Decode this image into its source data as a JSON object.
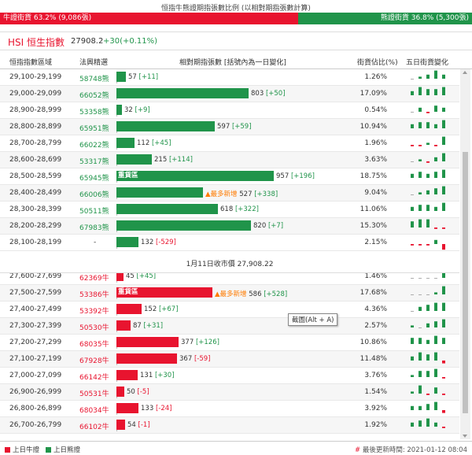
{
  "top": {
    "title": "恒指牛熊證期指張數比例 (以相對期指張數計算)",
    "bull_label": "牛證街貨 63.2% (9,086張)",
    "bear_label": "熊證街貨 36.8% (5,300張)",
    "bull_share": 0.632,
    "colors": {
      "bull": "#e8142f",
      "bear": "#20944a"
    }
  },
  "index": {
    "name": "HSI 恒生指數",
    "value": "27908.2",
    "change": "+30(+0.11%)"
  },
  "headers": {
    "range": "恒指指數區域",
    "code": "法興精選",
    "qty": "相對期指張數 [括號內為一日變化]",
    "pct": "街貨佔比(%)",
    "spark": "五日街貨變化"
  },
  "bear_rows": [
    {
      "range": "29,100-29,199",
      "code": "58748熊",
      "qty": 57,
      "delta": "[+11]",
      "pct": "1.26%",
      "heavy": "",
      "mark": "",
      "spark": [
        0,
        1,
        2,
        4,
        2
      ]
    },
    {
      "range": "29,000-29,099",
      "code": "66052熊",
      "qty": 803,
      "delta": "[+50]",
      "pct": "17.09%",
      "heavy": "",
      "mark": "",
      "spark": [
        2,
        4,
        3,
        3,
        4
      ]
    },
    {
      "range": "28,900-28,999",
      "code": "53358熊",
      "qty": 32,
      "delta": "[+9]",
      "pct": "0.54%",
      "heavy": "",
      "mark": "",
      "spark": [
        0,
        2,
        -1,
        3,
        2
      ]
    },
    {
      "range": "28,800-28,899",
      "code": "65951熊",
      "qty": 597,
      "delta": "[+59]",
      "pct": "10.94%",
      "heavy": "",
      "mark": "",
      "spark": [
        2,
        3,
        3,
        2,
        4
      ]
    },
    {
      "range": "28,700-28,799",
      "code": "66022熊",
      "qty": 112,
      "delta": "[+45]",
      "pct": "1.96%",
      "heavy": "",
      "mark": "",
      "spark": [
        -1,
        -1,
        1,
        -1,
        4
      ]
    },
    {
      "range": "28,600-28,699",
      "code": "53317熊",
      "qty": 215,
      "delta": "[+114]",
      "pct": "3.63%",
      "heavy": "",
      "mark": "",
      "spark": [
        0,
        1,
        -1,
        2,
        4
      ]
    },
    {
      "range": "28,500-28,599",
      "code": "65945熊",
      "qty": 957,
      "delta": "[+196]",
      "pct": "18.75%",
      "heavy": "重貨區",
      "mark": "",
      "spark": [
        2,
        3,
        2,
        3,
        4
      ]
    },
    {
      "range": "28,400-28,499",
      "code": "66006熊",
      "qty": 527,
      "delta": "[+338]",
      "pct": "9.04%",
      "heavy": "",
      "mark": "▲最多新增",
      "spark": [
        0,
        1,
        2,
        3,
        4
      ]
    },
    {
      "range": "28,300-28,399",
      "code": "50511熊",
      "qty": 618,
      "delta": "[+322]",
      "pct": "11.06%",
      "heavy": "",
      "mark": "",
      "spark": [
        2,
        3,
        3,
        2,
        4
      ]
    },
    {
      "range": "28,200-28,299",
      "code": "67983熊",
      "qty": 820,
      "delta": "[+7]",
      "pct": "15.30%",
      "heavy": "",
      "mark": "",
      "spark": [
        3,
        4,
        4,
        -1,
        -1
      ]
    },
    {
      "range": "28,100-28,199",
      "code": "-",
      "qty": 132,
      "delta": "[-529]",
      "pct": "2.15%",
      "heavy": "",
      "mark": "",
      "spark": [
        -1,
        -1,
        -1,
        2,
        -4
      ]
    }
  ],
  "mid_text": "1月11日收市價 27,908.22",
  "bull_rows": [
    {
      "range": "27,600-27,699",
      "code": "62369牛",
      "qty": 45,
      "delta": "[+45]",
      "pct": "1.46%",
      "heavy": "",
      "mark": "",
      "spark": [
        0,
        0,
        0,
        0,
        4
      ]
    },
    {
      "range": "27,500-27,599",
      "code": "53386牛",
      "qty": 586,
      "delta": "[+528]",
      "pct": "17.68%",
      "heavy": "重貨區",
      "mark": "▲最多新增",
      "spark": [
        0,
        0,
        0,
        1,
        4
      ]
    },
    {
      "range": "27,400-27,499",
      "code": "53392牛",
      "qty": 152,
      "delta": "[+67]",
      "pct": "4.36%",
      "heavy": "",
      "mark": "",
      "spark": [
        0,
        2,
        3,
        4,
        4
      ]
    },
    {
      "range": "27,300-27,399",
      "code": "50530牛",
      "qty": 87,
      "delta": "[+31]",
      "pct": "2.57%",
      "heavy": "",
      "mark": "",
      "spark": [
        1,
        0,
        2,
        3,
        4
      ]
    },
    {
      "range": "27,200-27,299",
      "code": "68035牛",
      "qty": 377,
      "delta": "[+126]",
      "pct": "10.86%",
      "heavy": "",
      "mark": "",
      "spark": [
        3,
        3,
        2,
        4,
        3
      ]
    },
    {
      "range": "27,100-27,199",
      "code": "67928牛",
      "qty": 367,
      "delta": "[-59]",
      "pct": "11.48%",
      "heavy": "",
      "mark": "",
      "spark": [
        2,
        4,
        3,
        4,
        -2
      ]
    },
    {
      "range": "27,000-27,099",
      "code": "66142牛",
      "qty": 131,
      "delta": "[+30]",
      "pct": "3.76%",
      "heavy": "",
      "mark": "",
      "spark": [
        1,
        3,
        3,
        4,
        -1
      ]
    },
    {
      "range": "26,900-26,999",
      "code": "50531牛",
      "qty": 50,
      "delta": "[-5]",
      "pct": "1.54%",
      "heavy": "",
      "mark": "",
      "spark": [
        1,
        4,
        -1,
        3,
        -1
      ]
    },
    {
      "range": "26,800-26,899",
      "code": "68034牛",
      "qty": 133,
      "delta": "[-24]",
      "pct": "3.92%",
      "heavy": "",
      "mark": "",
      "spark": [
        2,
        2,
        3,
        4,
        -2
      ]
    },
    {
      "range": "26,700-26,799",
      "code": "66102牛",
      "qty": 54,
      "delta": "[-1]",
      "pct": "1.92%",
      "heavy": "",
      "mark": "",
      "spark": [
        2,
        3,
        4,
        2,
        -1
      ]
    }
  ],
  "tooltip": "截圖(Alt + A)",
  "footer": {
    "legend_bull": "上日牛證",
    "legend_bear": "上日熊證",
    "updated": "最後更新時間: 2021-01-12 08:04",
    "hash": "#"
  }
}
